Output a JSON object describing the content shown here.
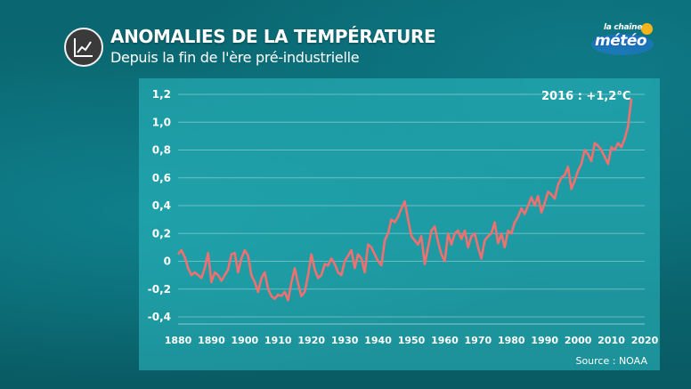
{
  "header": {
    "icon": "line-chart-icon",
    "title": "ANOMALIES DE LA TEMPÉRATURE",
    "subtitle": "Depuis la fin de l'ère pré-industrielle"
  },
  "logo": {
    "small_text": "la chaîne",
    "main_text": "météo"
  },
  "source": "Source : NOAA",
  "chart_data": {
    "type": "line",
    "title": "ANOMALIES DE LA TEMPÉRATURE",
    "subtitle": "Depuis la fin de l'ère pré-industrielle",
    "xlabel": "",
    "ylabel": "",
    "xlim": [
      1880,
      2020
    ],
    "ylim": [
      -0.4,
      1.2
    ],
    "x_ticks": [
      "1880",
      "1890",
      "1900",
      "1910",
      "1920",
      "1930",
      "1940",
      "1950",
      "1960",
      "1970",
      "1980",
      "1990",
      "2000",
      "2010",
      "2020"
    ],
    "y_ticks": [
      "1,2",
      "1,0",
      "0,8",
      "0,6",
      "0,4",
      "0,2",
      "0",
      "-0,2",
      "-0,4"
    ],
    "grid": "horizontal",
    "line_color": "#f06f6f",
    "annotation": "2016 : +1,2°C",
    "series": [
      {
        "x": [
          1880,
          1881,
          1882,
          1883,
          1884,
          1885,
          1886,
          1887,
          1888,
          1889,
          1890,
          1891,
          1892,
          1893,
          1894,
          1895,
          1896,
          1897,
          1898,
          1899,
          1900,
          1901,
          1902,
          1903,
          1904,
          1905,
          1906,
          1907,
          1908,
          1909,
          1910,
          1911,
          1912,
          1913,
          1914,
          1915,
          1916,
          1917,
          1918,
          1919,
          1920,
          1921,
          1922,
          1923,
          1924,
          1925,
          1926,
          1927,
          1928,
          1929,
          1930,
          1931,
          1932,
          1933,
          1934,
          1935,
          1936,
          1937,
          1938,
          1939,
          1940,
          1941,
          1942,
          1943,
          1944,
          1945,
          1946,
          1947,
          1948,
          1949,
          1950,
          1951,
          1952,
          1953,
          1954,
          1955,
          1956,
          1957,
          1958,
          1959,
          1960,
          1961,
          1962,
          1963,
          1964,
          1965,
          1966,
          1967,
          1968,
          1969,
          1970,
          1971,
          1972,
          1973,
          1974,
          1975,
          1976,
          1977,
          1978,
          1979,
          1980,
          1981,
          1982,
          1983,
          1984,
          1985,
          1986,
          1987,
          1988,
          1989,
          1990,
          1991,
          1992,
          1993,
          1994,
          1995,
          1996,
          1997,
          1998,
          1999,
          2000,
          2001,
          2002,
          2003,
          2004,
          2005,
          2006,
          2007,
          2008,
          2009,
          2010,
          2011,
          2012,
          2013,
          2014,
          2015,
          2016
        ],
        "values": [
          0.05,
          0.08,
          0.03,
          -0.05,
          -0.1,
          -0.08,
          -0.1,
          -0.12,
          -0.05,
          0.06,
          -0.15,
          -0.08,
          -0.1,
          -0.14,
          -0.1,
          -0.06,
          0.05,
          0.06,
          -0.08,
          0.02,
          0.08,
          0.04,
          -0.1,
          -0.15,
          -0.22,
          -0.12,
          -0.08,
          -0.2,
          -0.25,
          -0.27,
          -0.24,
          -0.25,
          -0.22,
          -0.28,
          -0.15,
          -0.05,
          -0.16,
          -0.25,
          -0.22,
          -0.1,
          0.05,
          -0.06,
          -0.12,
          -0.1,
          -0.02,
          -0.03,
          0.02,
          -0.02,
          -0.08,
          -0.1,
          0.0,
          0.04,
          0.08,
          -0.05,
          0.05,
          0.02,
          -0.08,
          0.12,
          0.1,
          0.05,
          0.0,
          -0.03,
          0.15,
          0.2,
          0.3,
          0.28,
          0.32,
          0.38,
          0.43,
          0.3,
          0.18,
          0.15,
          0.12,
          0.18,
          -0.02,
          0.1,
          0.22,
          0.25,
          0.14,
          0.05,
          0.0,
          0.2,
          0.12,
          0.2,
          0.22,
          0.16,
          0.22,
          0.1,
          0.18,
          0.2,
          0.1,
          0.02,
          0.15,
          0.18,
          0.2,
          0.28,
          0.13,
          0.2,
          0.1,
          0.22,
          0.2,
          0.28,
          0.32,
          0.38,
          0.34,
          0.4,
          0.46,
          0.4,
          0.47,
          0.35,
          0.42,
          0.5,
          0.48,
          0.45,
          0.55,
          0.6,
          0.62,
          0.68,
          0.52,
          0.58,
          0.65,
          0.7,
          0.8,
          0.77,
          0.72,
          0.85,
          0.83,
          0.8,
          0.75,
          0.7,
          0.82,
          0.8,
          0.85,
          0.82,
          0.88,
          0.97,
          1.17
        ]
      }
    ]
  }
}
